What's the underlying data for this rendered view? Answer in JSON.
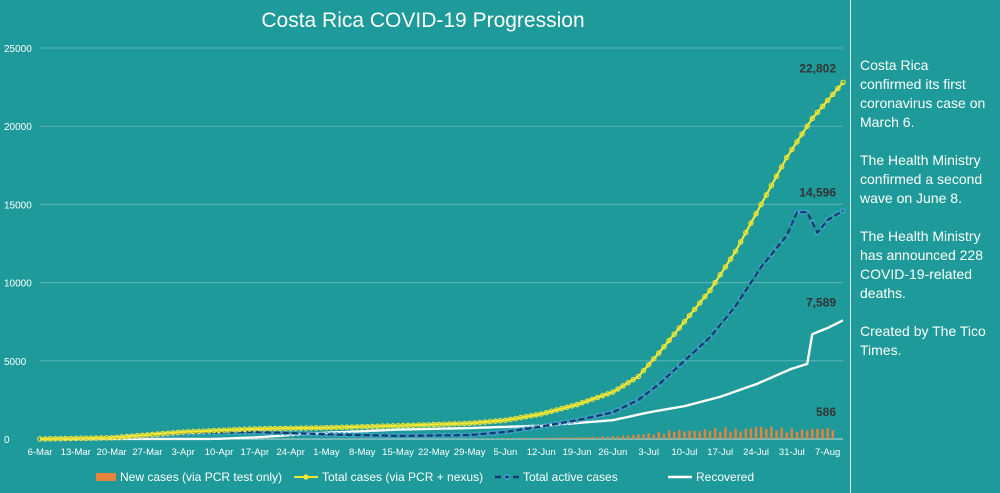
{
  "colors": {
    "background": "#1e9a9a",
    "new_cases": "#e8833a",
    "total_cases": "#f2e633",
    "active_cases": "#163a6e",
    "active_cases_marker": "#4aa3d8",
    "recovered": "#ffffff",
    "text": "#ffffff",
    "label_dark": "#333333"
  },
  "side_notes": [
    "Costa Rica confirmed its first coronavirus case on March 6.",
    "The Health Ministry confirmed a second wave on June 8.",
    "The Health Ministry has announced 228 COVID-19-related deaths.",
    "Created by The Tico Times."
  ],
  "chart_data": {
    "type": "line",
    "title": "Costa Rica COVID-19 Progression",
    "ylim": [
      0,
      25000
    ],
    "yticks": [
      "0",
      "5000",
      "10000",
      "15000",
      "20000",
      "25000"
    ],
    "x_start": "2020-03-06",
    "x_end": "2020-08-10",
    "xtick_labels": [
      "6-Mar",
      "13-Mar",
      "20-Mar",
      "27-Mar",
      "3-Apr",
      "10-Apr",
      "17-Apr",
      "24-Apr",
      "1-May",
      "8-May",
      "15-May",
      "22-May",
      "29-May",
      "5-Jun",
      "12-Jun",
      "19-Jun",
      "26-Jun",
      "3-Jul",
      "10-Jul",
      "17-Jul",
      "24-Jul",
      "31-Jul",
      "7-Aug"
    ],
    "legend_position": "bottom",
    "end_labels": [
      {
        "series": "Total cases (via PCR + nexus)",
        "text": "22,802",
        "value": 22802
      },
      {
        "series": "Total active cases",
        "text": "14,596",
        "value": 14596
      },
      {
        "series": "Recovered",
        "text": "7,589",
        "value": 7589
      },
      {
        "series": "New cases (via PCR test only)",
        "text": "586",
        "value": 586
      }
    ],
    "series": [
      {
        "name": "New cases (via PCR test only)",
        "kind": "bar",
        "points": [
          [
            "2020-03-06",
            1
          ],
          [
            "2020-03-20",
            30
          ],
          [
            "2020-04-03",
            25
          ],
          [
            "2020-04-17",
            20
          ],
          [
            "2020-05-01",
            10
          ],
          [
            "2020-05-15",
            12
          ],
          [
            "2020-05-29",
            15
          ],
          [
            "2020-06-05",
            40
          ],
          [
            "2020-06-12",
            70
          ],
          [
            "2020-06-19",
            100
          ],
          [
            "2020-06-26",
            150
          ],
          [
            "2020-07-01",
            250
          ],
          [
            "2020-07-05",
            350
          ],
          [
            "2020-07-08",
            500
          ],
          [
            "2020-07-12",
            450
          ],
          [
            "2020-07-15",
            550
          ],
          [
            "2020-07-18",
            600
          ],
          [
            "2020-07-21",
            500
          ],
          [
            "2020-07-24",
            700
          ],
          [
            "2020-07-27",
            650
          ],
          [
            "2020-07-30",
            550
          ],
          [
            "2020-08-02",
            500
          ],
          [
            "2020-08-05",
            600
          ],
          [
            "2020-08-08",
            586
          ]
        ]
      },
      {
        "name": "Total cases (via PCR + nexus)",
        "kind": "line",
        "points": [
          [
            "2020-03-06",
            1
          ],
          [
            "2020-03-20",
            80
          ],
          [
            "2020-04-03",
            450
          ],
          [
            "2020-04-17",
            650
          ],
          [
            "2020-05-01",
            720
          ],
          [
            "2020-05-15",
            850
          ],
          [
            "2020-05-29",
            1000
          ],
          [
            "2020-06-05",
            1200
          ],
          [
            "2020-06-12",
            1600
          ],
          [
            "2020-06-19",
            2200
          ],
          [
            "2020-06-26",
            3000
          ],
          [
            "2020-07-01",
            4000
          ],
          [
            "2020-07-05",
            5500
          ],
          [
            "2020-07-10",
            7500
          ],
          [
            "2020-07-15",
            9500
          ],
          [
            "2020-07-20",
            12000
          ],
          [
            "2020-07-25",
            15000
          ],
          [
            "2020-07-30",
            18000
          ],
          [
            "2020-08-04",
            20500
          ],
          [
            "2020-08-10",
            22802
          ]
        ]
      },
      {
        "name": "Total active cases",
        "kind": "line",
        "points": [
          [
            "2020-03-06",
            1
          ],
          [
            "2020-03-20",
            70
          ],
          [
            "2020-04-03",
            380
          ],
          [
            "2020-04-17",
            450
          ],
          [
            "2020-05-01",
            300
          ],
          [
            "2020-05-15",
            200
          ],
          [
            "2020-05-29",
            250
          ],
          [
            "2020-06-05",
            450
          ],
          [
            "2020-06-12",
            800
          ],
          [
            "2020-06-19",
            1200
          ],
          [
            "2020-06-26",
            1700
          ],
          [
            "2020-07-01",
            2500
          ],
          [
            "2020-07-05",
            3500
          ],
          [
            "2020-07-10",
            5000
          ],
          [
            "2020-07-15",
            6500
          ],
          [
            "2020-07-20",
            8500
          ],
          [
            "2020-07-25",
            11000
          ],
          [
            "2020-07-30",
            13000
          ],
          [
            "2020-08-01",
            14500
          ],
          [
            "2020-08-03",
            14500
          ],
          [
            "2020-08-05",
            13200
          ],
          [
            "2020-08-07",
            14000
          ],
          [
            "2020-08-10",
            14596
          ]
        ]
      },
      {
        "name": "Recovered",
        "kind": "line",
        "points": [
          [
            "2020-03-06",
            0
          ],
          [
            "2020-04-10",
            10
          ],
          [
            "2020-04-17",
            100
          ],
          [
            "2020-05-01",
            400
          ],
          [
            "2020-05-15",
            600
          ],
          [
            "2020-05-29",
            700
          ],
          [
            "2020-06-12",
            850
          ],
          [
            "2020-06-26",
            1200
          ],
          [
            "2020-07-03",
            1700
          ],
          [
            "2020-07-10",
            2100
          ],
          [
            "2020-07-17",
            2700
          ],
          [
            "2020-07-24",
            3500
          ],
          [
            "2020-07-31",
            4500
          ],
          [
            "2020-08-03",
            4800
          ],
          [
            "2020-08-04",
            6700
          ],
          [
            "2020-08-07",
            7100
          ],
          [
            "2020-08-10",
            7589
          ]
        ]
      }
    ]
  }
}
